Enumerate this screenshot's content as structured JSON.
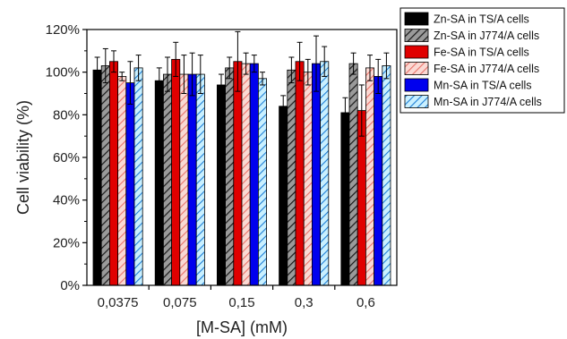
{
  "chart_data": {
    "type": "bar",
    "xlabel": "[M-SA] (mM)",
    "ylabel": "Cell viability (%)",
    "ylim": [
      0,
      120
    ],
    "yticks": [
      0,
      20,
      40,
      60,
      80,
      100,
      120
    ],
    "ytick_suffix": "%",
    "grid": false,
    "legend_position": "top-right",
    "categories": [
      "0,0375",
      "0,075",
      "0,15",
      "0,3",
      "0,6"
    ],
    "series": [
      {
        "name": "Zn-SA in TS/A cells",
        "color": "#000000",
        "hatch": "none",
        "values": [
          101,
          96,
          94,
          84,
          81
        ],
        "errors": [
          6,
          6,
          5,
          5,
          7
        ]
      },
      {
        "name": "Zn-SA in J774/A cells",
        "color": "#8c8c8c",
        "hatch": "diagonal-dark",
        "values": [
          103,
          99,
          102,
          101,
          104
        ],
        "errors": [
          8,
          8,
          5,
          6,
          5
        ]
      },
      {
        "name": "Fe-SA in TS/A cells",
        "color": "#e00000",
        "hatch": "none",
        "values": [
          105,
          106,
          105,
          105,
          82
        ],
        "errors": [
          5,
          8,
          14,
          9,
          12
        ]
      },
      {
        "name": "Fe-SA in J774/A cells",
        "color": "#f3b8b0",
        "hatch": "diagonal-red",
        "values": [
          98,
          99,
          104,
          100,
          102
        ],
        "errors": [
          2,
          9,
          5,
          6,
          6
        ]
      },
      {
        "name": "Mn-SA in TS/A cells",
        "color": "#0000ee",
        "hatch": "none",
        "values": [
          95,
          99,
          104,
          104,
          98
        ],
        "errors": [
          10,
          10,
          4,
          13,
          8
        ]
      },
      {
        "name": "Mn-SA in J774/A cells",
        "color": "#a8e6ff",
        "hatch": "diagonal-blue",
        "values": [
          102,
          99,
          97,
          105,
          103
        ],
        "errors": [
          6,
          9,
          3,
          7,
          6
        ]
      }
    ]
  }
}
